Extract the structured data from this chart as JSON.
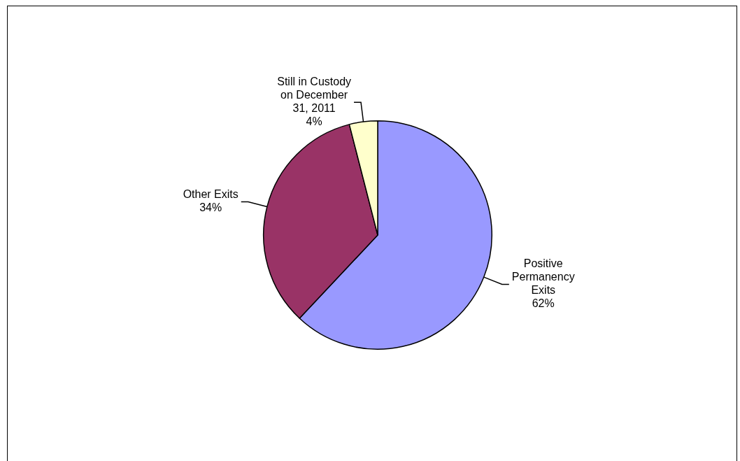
{
  "chart_data": {
    "type": "pie",
    "categories": [
      "Positive Permanency Exits",
      "Other Exits",
      "Still in Custody on December 31, 2011"
    ],
    "values": [
      62,
      34,
      4
    ],
    "colors": [
      "#9999ff",
      "#993366",
      "#ffffcc"
    ],
    "value_labels": [
      "62%",
      "34%",
      "4%"
    ],
    "legend": false
  }
}
